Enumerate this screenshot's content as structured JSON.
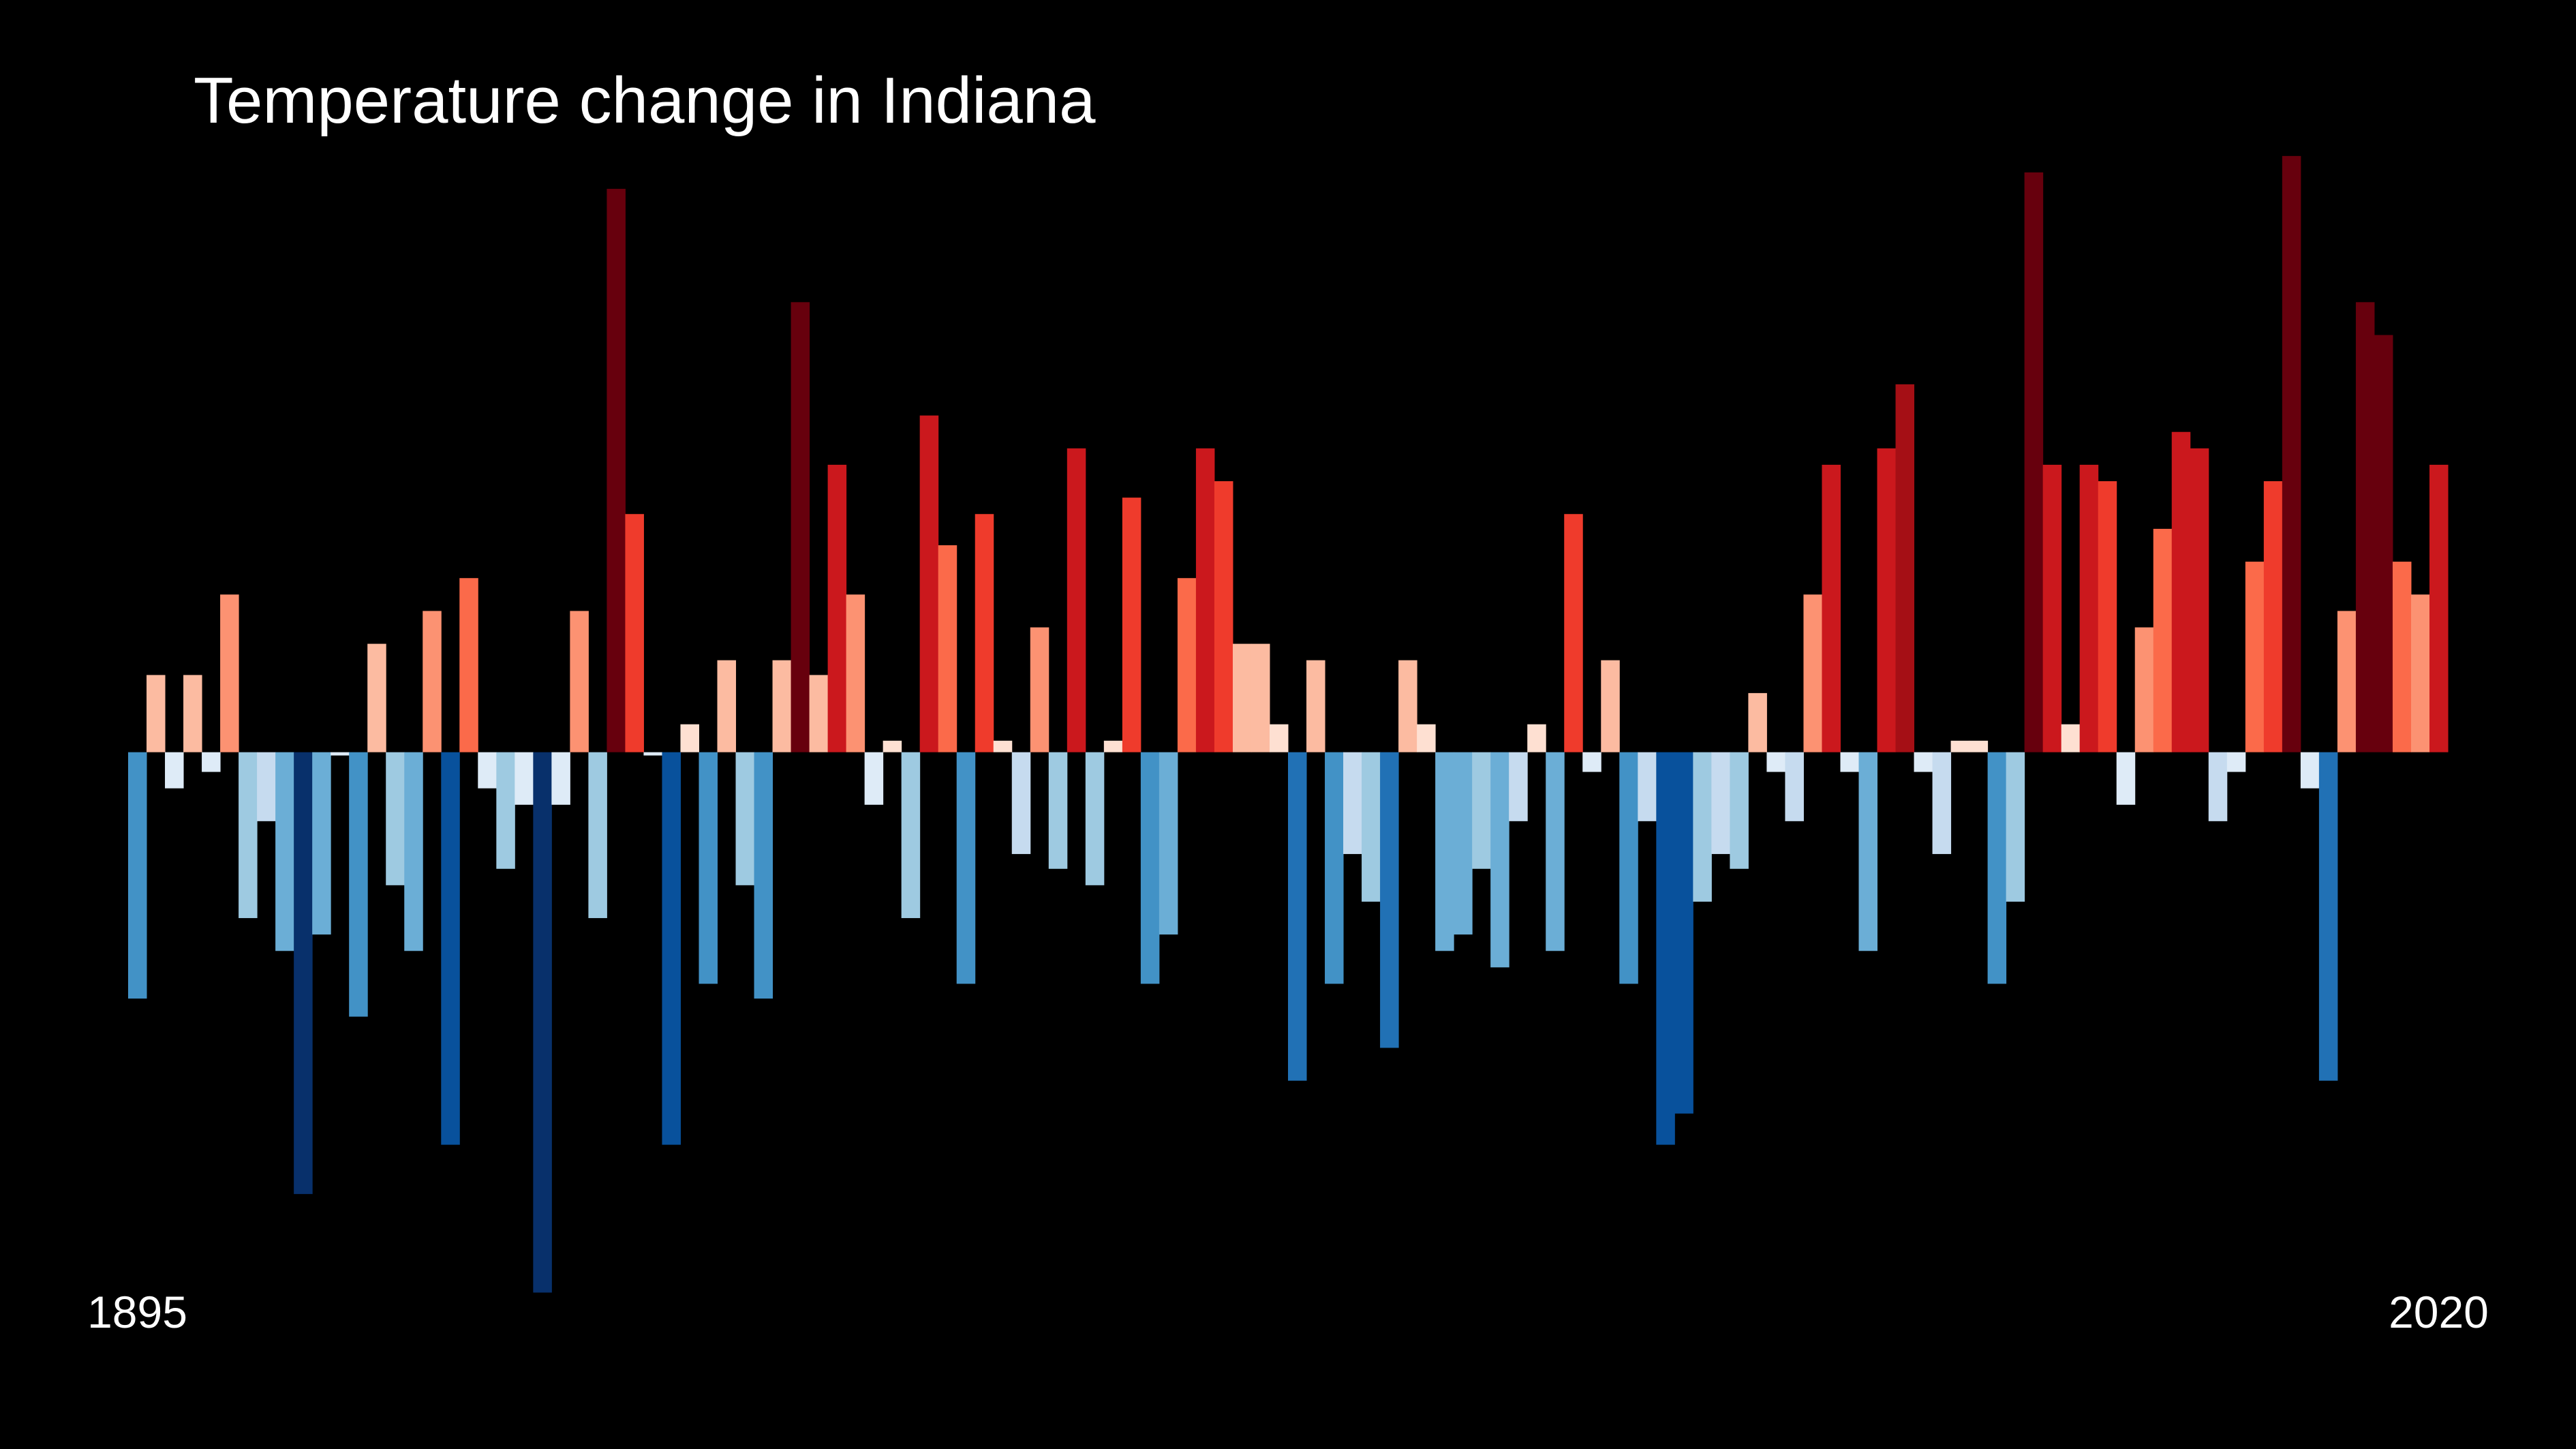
{
  "chart_data": {
    "type": "bar",
    "title": "Temperature change in Indiana",
    "categories": [
      "1895",
      null,
      null,
      null,
      null,
      null,
      null,
      null,
      null,
      null,
      null,
      null,
      null,
      null,
      null,
      null,
      null,
      null,
      null,
      null,
      null,
      null,
      null,
      null,
      null,
      null,
      null,
      null,
      null,
      null,
      null,
      null,
      null,
      null,
      null,
      null,
      null,
      null,
      null,
      null,
      null,
      null,
      null,
      null,
      null,
      null,
      null,
      null,
      null,
      null,
      null,
      null,
      null,
      null,
      null,
      null,
      null,
      null,
      null,
      null,
      null,
      null,
      null,
      null,
      null,
      null,
      null,
      null,
      null,
      null,
      null,
      null,
      null,
      null,
      null,
      null,
      null,
      null,
      null,
      null,
      null,
      null,
      null,
      null,
      null,
      null,
      null,
      null,
      null,
      null,
      null,
      null,
      null,
      null,
      null,
      null,
      null,
      null,
      null,
      null,
      null,
      null,
      null,
      null,
      null,
      null,
      null,
      null,
      null,
      null,
      null,
      null,
      null,
      null,
      null,
      null,
      null,
      null,
      null,
      null,
      null,
      null,
      null,
      null,
      null,
      "2020"
    ],
    "values": [
      -1.5,
      0.47,
      -0.22,
      0.47,
      -0.12,
      0.96,
      -1.01,
      -0.42,
      -1.21,
      -2.69,
      -1.11,
      -0.02,
      -1.61,
      0.66,
      -0.81,
      -1.21,
      0.86,
      -2.39,
      1.06,
      -0.22,
      -0.71,
      -0.32,
      -3.29,
      -0.32,
      0.86,
      -1.01,
      3.43,
      1.45,
      -0.02,
      -2.39,
      0.17,
      -1.41,
      0.56,
      -0.81,
      -1.5,
      0.56,
      2.74,
      0.47,
      1.75,
      0.96,
      -0.32,
      0.07,
      -1.01,
      2.05,
      1.26,
      -1.41,
      1.45,
      0.07,
      -0.62,
      0.76,
      -0.71,
      1.85,
      -0.81,
      0.07,
      1.55,
      -1.41,
      -1.11,
      1.06,
      1.85,
      1.65,
      0.66,
      0.66,
      0.17,
      -2.0,
      0.56,
      -1.41,
      -0.62,
      -0.91,
      -1.8,
      0.56,
      0.17,
      -1.21,
      -1.11,
      -0.71,
      -1.31,
      -0.42,
      0.17,
      -1.21,
      1.45,
      -0.12,
      0.56,
      -1.41,
      -0.42,
      -2.39,
      -2.2,
      -0.91,
      -0.62,
      -0.71,
      0.36,
      -0.12,
      -0.42,
      0.96,
      1.75,
      -0.12,
      -1.21,
      1.85,
      2.24,
      -0.12,
      -0.62,
      0.07,
      0.07,
      -1.41,
      -0.91,
      3.53,
      1.75,
      0.17,
      1.75,
      1.65,
      -0.32,
      0.76,
      1.36,
      1.95,
      1.85,
      -0.42,
      -0.12,
      1.16,
      1.65,
      3.63,
      -0.22,
      -2.0,
      0.86,
      2.74,
      2.54,
      1.16,
      0.96,
      1.75
    ],
    "ylim": [
      -3.4,
      3.7
    ],
    "palette": [
      "#08306b",
      "#08519c",
      "#2171b5",
      "#4292c6",
      "#6baed6",
      "#9ecae1",
      "#c6dbef",
      "#deebf7",
      "#fee0d2",
      "#fcbba1",
      "#fc9272",
      "#fb6a4a",
      "#ef3b2c",
      "#cb181d",
      "#a50f15",
      "#67000d"
    ]
  }
}
